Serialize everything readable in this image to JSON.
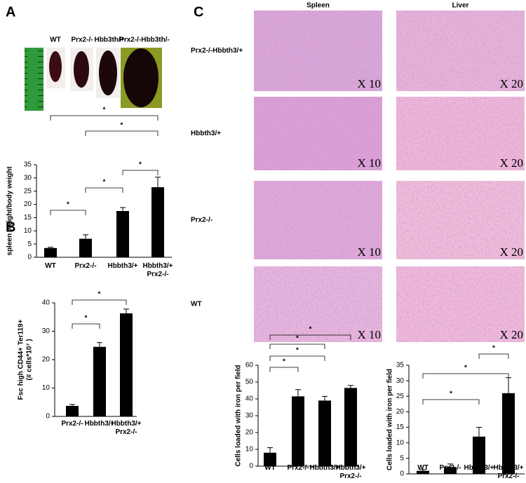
{
  "panel_labels": [
    "A",
    "B",
    "C"
  ],
  "photo_labels": [
    "WT",
    "Prx2-/-",
    "Hbb3th/+",
    "Prx2-/-Hbb3th/-"
  ],
  "histology": {
    "columns": [
      "Spleen",
      "Liver"
    ],
    "rows": [
      "Prx2-/-Hbbth3/+",
      "Hbbth3/+",
      "Prx2-/-",
      "WT"
    ],
    "magnifications": [
      "X 10",
      "X 20"
    ]
  },
  "chart_data": [
    {
      "type": "bar",
      "ylabel": "spleen weight/body weight",
      "categories": [
        "WT",
        "Prx2-/-",
        "Hbbth3/+",
        "Hbbth3/+ Prx2-/-"
      ],
      "values": [
        3.5,
        7,
        17.5,
        26.5
      ],
      "errors": [
        0.3,
        1.5,
        1.3,
        3.8
      ],
      "color": "#000000",
      "ylim": [
        0,
        35
      ],
      "yticks": [
        0,
        5,
        10,
        15,
        20,
        25,
        30,
        35
      ],
      "annotations": [
        "*",
        "*",
        "*",
        "*",
        "*"
      ]
    },
    {
      "type": "bar",
      "ylabel": [
        "Fsc high CD44+ Ter119+",
        "(# cells*10⁷ )"
      ],
      "categories": [
        "Prx2-/-",
        "Hbbth3/+",
        "Hbbth3/+ Prx2-/-"
      ],
      "values": [
        3.7,
        24.5,
        36.3
      ],
      "errors": [
        0.5,
        1.5,
        1.5
      ],
      "color": "#000000",
      "ylim": [
        0,
        40
      ],
      "yticks": [
        0,
        10,
        20,
        30,
        40
      ],
      "annotations": [
        "*",
        "*"
      ]
    },
    {
      "type": "bar",
      "ylabel": "Cells loaded with iron per field",
      "categories": [
        "WT",
        "Prx2-/-",
        "Hbbth3/+",
        "Hbbth3/+ Prx2-/-"
      ],
      "values": [
        8,
        41.5,
        39,
        46.5
      ],
      "errors": [
        3,
        4,
        2.5,
        1.5
      ],
      "color": "#000000",
      "ylim": [
        0,
        60
      ],
      "yticks": [
        0,
        10,
        20,
        30,
        40,
        50,
        60
      ],
      "annotations": [
        "*",
        "*",
        "*",
        "*"
      ]
    },
    {
      "type": "bar",
      "ylabel": "Cells loaded with iron per field",
      "categories": [
        "WT",
        "Prx2-/-",
        "Hbbth3/+",
        "Hbbth3/+ Prx2-/-"
      ],
      "values": [
        1,
        2.2,
        12,
        26
      ],
      "errors": [
        0.4,
        1,
        3,
        5
      ],
      "color": "#000000",
      "ylim": [
        0,
        35
      ],
      "yticks": [
        0,
        5,
        10,
        15,
        20,
        25,
        30,
        35
      ],
      "annotations": [
        "*",
        "*",
        "*"
      ]
    }
  ]
}
